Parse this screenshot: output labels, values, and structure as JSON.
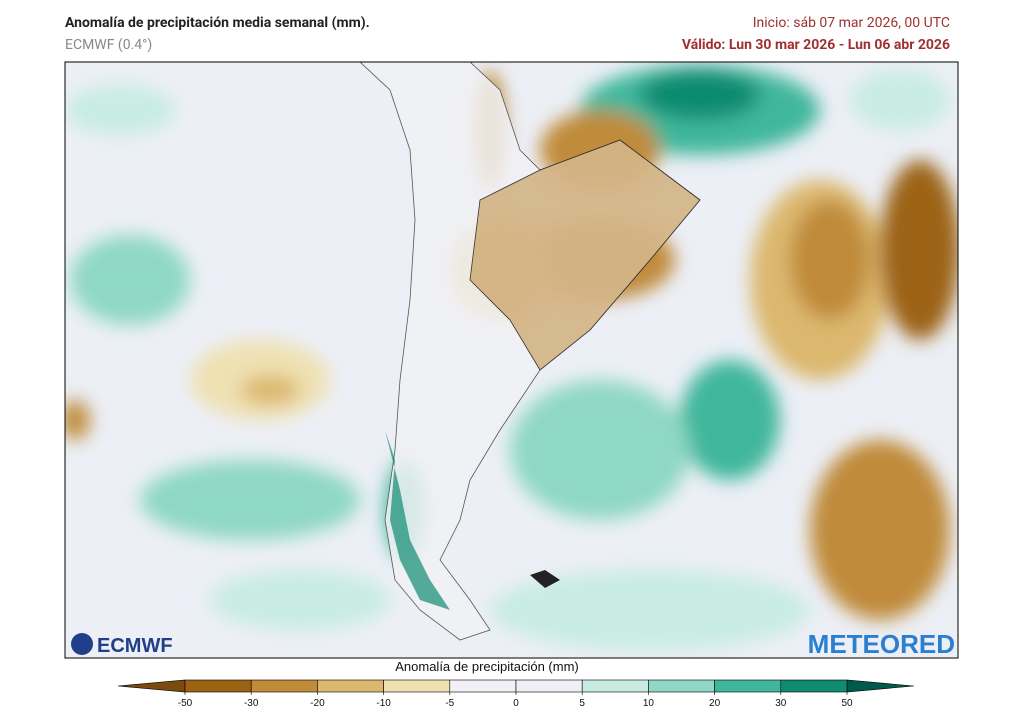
{
  "header": {
    "title": "Anomalía de precipitación media semanal (mm).",
    "model": "ECMWF (0.4°)",
    "init": "Inicio:  sáb 07 mar 2026, 00 UTC",
    "valid": "Válido: Lun 30 mar 2026 - Lun 06 abr 2026"
  },
  "logos": {
    "left": "ECMWF",
    "right": "METEORED"
  },
  "colorbar": {
    "label": "Anomalía de precipitación (mm)",
    "ticks": [
      -50,
      -30,
      -20,
      -10,
      -5,
      0,
      5,
      10,
      20,
      30,
      50
    ],
    "colors": [
      "#7b4a0e",
      "#9c6315",
      "#c08b3b",
      "#dcb86e",
      "#efe1b2",
      "#f2f0f4",
      "#eef0f6",
      "#c8ece2",
      "#8fd8c5",
      "#40b79b",
      "#108b71",
      "#005a4c"
    ]
  }
}
